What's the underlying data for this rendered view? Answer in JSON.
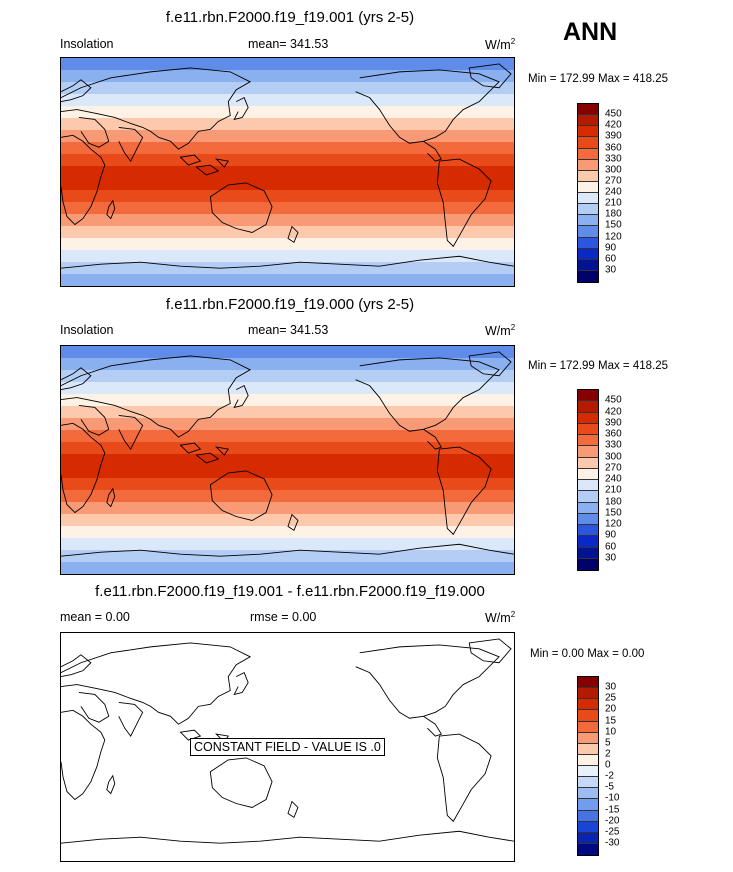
{
  "season": "ANN",
  "panels": [
    {
      "title": "f.e11.rbn.F2000.f19_f19.001 (yrs 2-5)",
      "left_label": "Insolation",
      "mean_label": "mean= 341.53",
      "units_base": "W/m",
      "units_exp": "2",
      "minmax": "Min = 172.99 Max = 418.25",
      "colorbar_ticks": [
        "450",
        "420",
        "390",
        "360",
        "330",
        "300",
        "270",
        "240",
        "210",
        "180",
        "150",
        "120",
        "90",
        "60",
        "30"
      ]
    },
    {
      "title": "f.e11.rbn.F2000.f19_f19.000 (yrs 2-5)",
      "left_label": "Insolation",
      "mean_label": "mean= 341.53",
      "units_base": "W/m",
      "units_exp": "2",
      "minmax": "Min = 172.99 Max = 418.25",
      "colorbar_ticks": [
        "450",
        "420",
        "390",
        "360",
        "330",
        "300",
        "270",
        "240",
        "210",
        "180",
        "150",
        "120",
        "90",
        "60",
        "30"
      ]
    },
    {
      "title": "f.e11.rbn.F2000.f19_f19.001 - f.e11.rbn.F2000.f19_f19.000",
      "left_label": "mean =   0.00",
      "mean_label": "rmse =   0.00",
      "units_base": "W/m",
      "units_exp": "2",
      "minmax": "Min =   0.00 Max =   0.00",
      "constant_note": "CONSTANT FIELD - VALUE IS .0",
      "colorbar_ticks": [
        "30",
        "25",
        "20",
        "15",
        "10",
        "5",
        "2",
        "0",
        "-2",
        "-5",
        "-10",
        "-15",
        "-20",
        "-25",
        "-30"
      ]
    }
  ],
  "colors": {
    "abs_scale": [
      "#870000",
      "#b31a00",
      "#d62b00",
      "#e94a1a",
      "#f36b3c",
      "#f89a76",
      "#fcc9ad",
      "#fef2e6",
      "#dbe8f9",
      "#b3cdf5",
      "#8ab0f0",
      "#5e8ce8",
      "#2c56e0",
      "#0a28c7",
      "#00148f",
      "#000066"
    ],
    "diff_scale": [
      "#870000",
      "#b31a00",
      "#d62b00",
      "#e94a1a",
      "#f36b3c",
      "#f89a76",
      "#fcc9ad",
      "#fef2e6",
      "#e8f0fb",
      "#c6d8f7",
      "#9dbdf2",
      "#729cec",
      "#4474e4",
      "#1845d6",
      "#0a24b0",
      "#000a80"
    ],
    "insolation_bands": [
      "#5e8ce8",
      "#8ab0f0",
      "#b3cdf5",
      "#dbe8f9",
      "#fef2e6",
      "#fcc9ad",
      "#f89a76",
      "#f36b3c",
      "#e94a1a",
      "#d62b00",
      "#d62b00",
      "#e94a1a",
      "#f36b3c",
      "#f89a76",
      "#fcc9ad",
      "#fef2e6",
      "#dbe8f9",
      "#b3cdf5",
      "#8ab0f0"
    ]
  }
}
